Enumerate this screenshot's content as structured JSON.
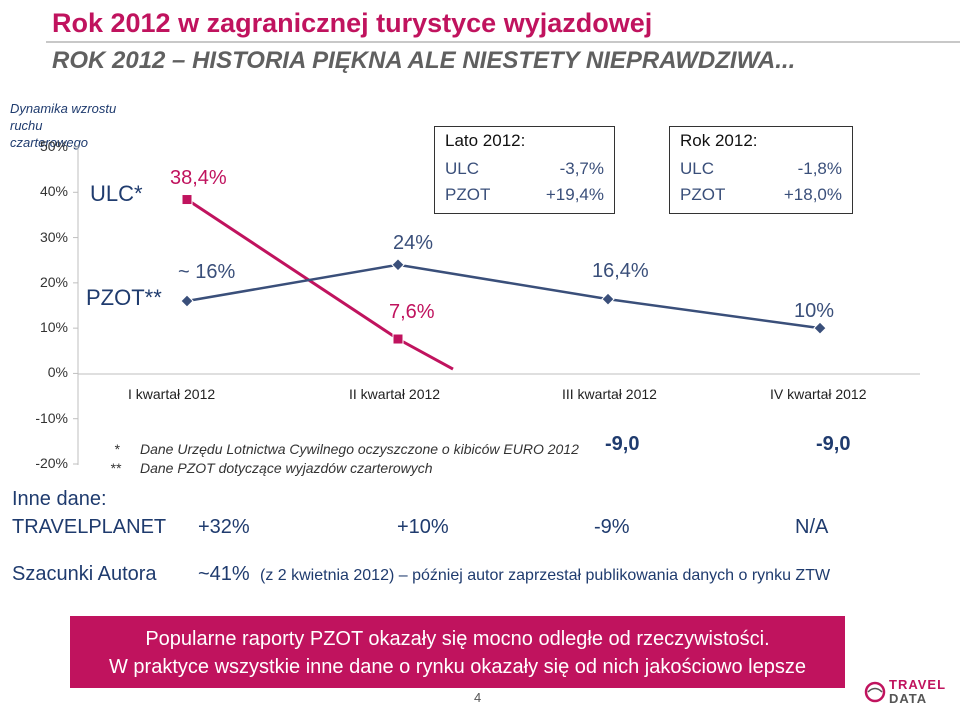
{
  "header": {
    "title": "Rok 2012 w zagranicznej turystyce wyjazdowej",
    "subtitle": "ROK 2012 – HISTORIA PIĘKNA ALE NIESTETY NIEPRAWDZIWA..."
  },
  "chart_data": {
    "type": "line",
    "ylabel": "Dynamika wzrostu ruchu czarterowego",
    "ylim": [
      -20,
      50
    ],
    "yticks": [
      "50%",
      "40%",
      "30%",
      "20%",
      "10%",
      "0%",
      "-10%",
      "-20%"
    ],
    "categories": [
      "I kwartał 2012",
      "II kwartał 2012",
      "III kwartał 2012",
      "IV kwartał 2012"
    ],
    "series": [
      {
        "name": "ULC*",
        "color": "#c0135e",
        "marker": "square",
        "values": [
          38.4,
          7.6,
          -9.0,
          -9.0
        ],
        "labels": [
          "38,4%",
          "7,6%",
          "-9,0",
          "-9,0"
        ]
      },
      {
        "name": "PZOT**",
        "color": "#3a4f7a",
        "marker": "diamond",
        "values": [
          16,
          24,
          16.4,
          10
        ],
        "labels": [
          "~ 16%",
          "24%",
          "16,4%",
          "10%"
        ]
      }
    ],
    "grid": false
  },
  "boxes": [
    {
      "title": "Lato 2012:",
      "rows": [
        {
          "label": "ULC",
          "value": "-3,7%"
        },
        {
          "label": "PZOT",
          "value": "+19,4%"
        }
      ]
    },
    {
      "title": "Rok 2012:",
      "rows": [
        {
          "label": "ULC",
          "value": "-1,8%"
        },
        {
          "label": "PZOT",
          "value": "+18,0%"
        }
      ]
    }
  ],
  "notes": [
    {
      "mark": "*",
      "text": "Dane Urzędu Lotnictwa Cywilnego oczyszczone o kibiców EURO 2012"
    },
    {
      "mark": "**",
      "text": "Dane PZOT dotyczące wyjazdów czarterowych"
    }
  ],
  "other_data": {
    "heading": "Inne dane:",
    "travelplanet": {
      "label": "TRAVELPLANET",
      "values": [
        "+32%",
        "+10%",
        "-9%",
        "N/A"
      ]
    },
    "autor": {
      "label": "Szacunki Autora",
      "value": "~41%",
      "detail": "(z 2 kwietnia 2012) – później autor zaprzestał publikowania danych o rynku ZTW"
    }
  },
  "banner": {
    "line1": "Popularne raporty PZOT okazały się mocno odległe od rzeczywistości.",
    "line2": "W praktyce wszystkie inne dane o rynku okazały się od nich jakościowo lepsze"
  },
  "footer": {
    "page_number": "4",
    "logo_top": "TRAVEL",
    "logo_bottom": "DATA"
  }
}
